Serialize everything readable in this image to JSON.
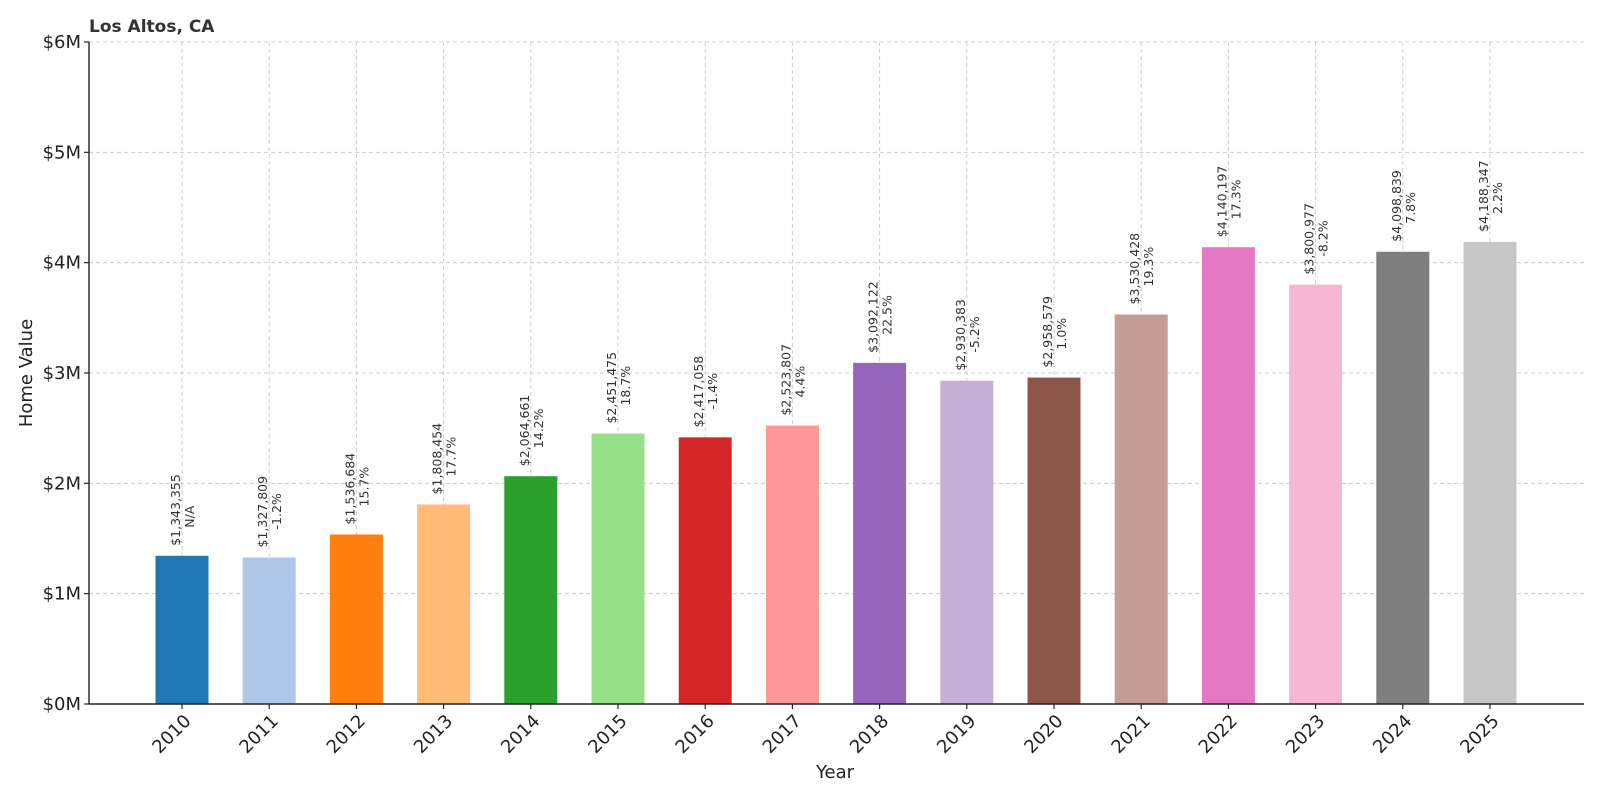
{
  "chart_data": {
    "type": "bar",
    "title": "Los Altos, CA",
    "xlabel": "Year",
    "ylabel": "Home Value",
    "ylim": [
      0,
      6000000
    ],
    "yticks": [
      "$0M",
      "$1M",
      "$2M",
      "$3M",
      "$4M",
      "$5M",
      "$6M"
    ],
    "grid": true,
    "categories": [
      "2010",
      "2011",
      "2012",
      "2013",
      "2014",
      "2015",
      "2016",
      "2017",
      "2018",
      "2019",
      "2020",
      "2021",
      "2022",
      "2023",
      "2024",
      "2025"
    ],
    "values": [
      1343355,
      1327809,
      1536684,
      1808454,
      2064661,
      2451475,
      2417058,
      2523807,
      3092122,
      2930383,
      2958579,
      3530428,
      4140197,
      3800977,
      4098839,
      4188347
    ],
    "value_labels": [
      "$1,343,355",
      "$1,327,809",
      "$1,536,684",
      "$1,808,454",
      "$2,064,661",
      "$2,451,475",
      "$2,417,058",
      "$2,523,807",
      "$3,092,122",
      "$2,930,383",
      "$2,958,579",
      "$3,530,428",
      "$4,140,197",
      "$3,800,977",
      "$4,098,839",
      "$4,188,347"
    ],
    "change_labels": [
      "N/A",
      "-1.2%",
      "15.7%",
      "17.7%",
      "14.2%",
      "18.7%",
      "-1.4%",
      "4.4%",
      "22.5%",
      "-5.2%",
      "1.0%",
      "19.3%",
      "17.3%",
      "-8.2%",
      "7.8%",
      "2.2%"
    ],
    "colors": [
      "#1f77b4",
      "#aec7e8",
      "#ff7f0e",
      "#ffbb78",
      "#2ca02c",
      "#98df8a",
      "#d62728",
      "#ff9896",
      "#9467bd",
      "#c5b0d5",
      "#8c564b",
      "#c49c94",
      "#e377c2",
      "#f7b6d2",
      "#7f7f7f",
      "#c7c7c7"
    ]
  }
}
